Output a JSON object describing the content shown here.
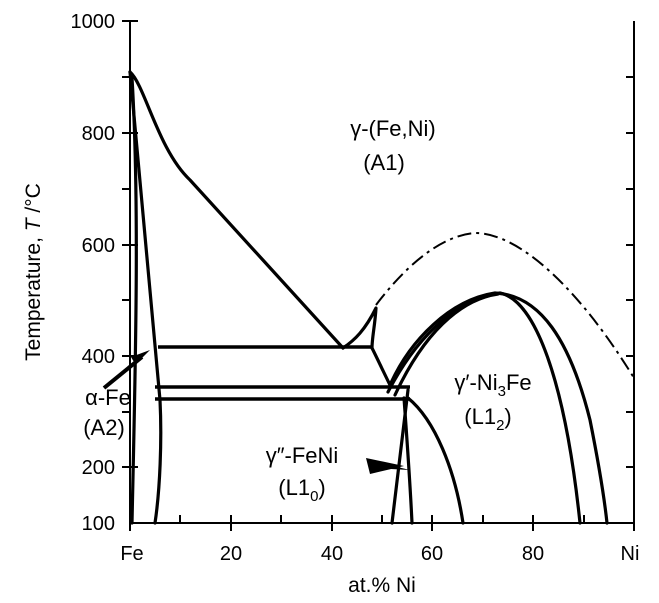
{
  "diagram": {
    "x_axis": {
      "label": "at.% Ni",
      "ticks": [
        "Fe",
        "20",
        "40",
        "60",
        "80",
        "Ni"
      ]
    },
    "y_axis": {
      "label_prefix": "Temperature, ",
      "label_symbol": "T",
      "label_suffix": " /°C",
      "ticks": [
        "100",
        "200",
        "400",
        "600",
        "800",
        "1000"
      ]
    },
    "regions": {
      "gamma_line1": "γ-(Fe,Ni)",
      "gamma_line2": "(A1)",
      "alpha_line1": "α-Fe",
      "alpha_line2": "(A2)",
      "l12_prefix": "γ′-Ni",
      "l12_sub": "3",
      "l12_suffix": "Fe",
      "l12_struct_prefix": "(L1",
      "l12_struct_sub": "2",
      "l12_struct_suffix": ")",
      "l10_line1": "γ″-FeNi",
      "l10_struct_prefix": "(L1",
      "l10_struct_sub": "0",
      "l10_struct_suffix": ")"
    }
  }
}
